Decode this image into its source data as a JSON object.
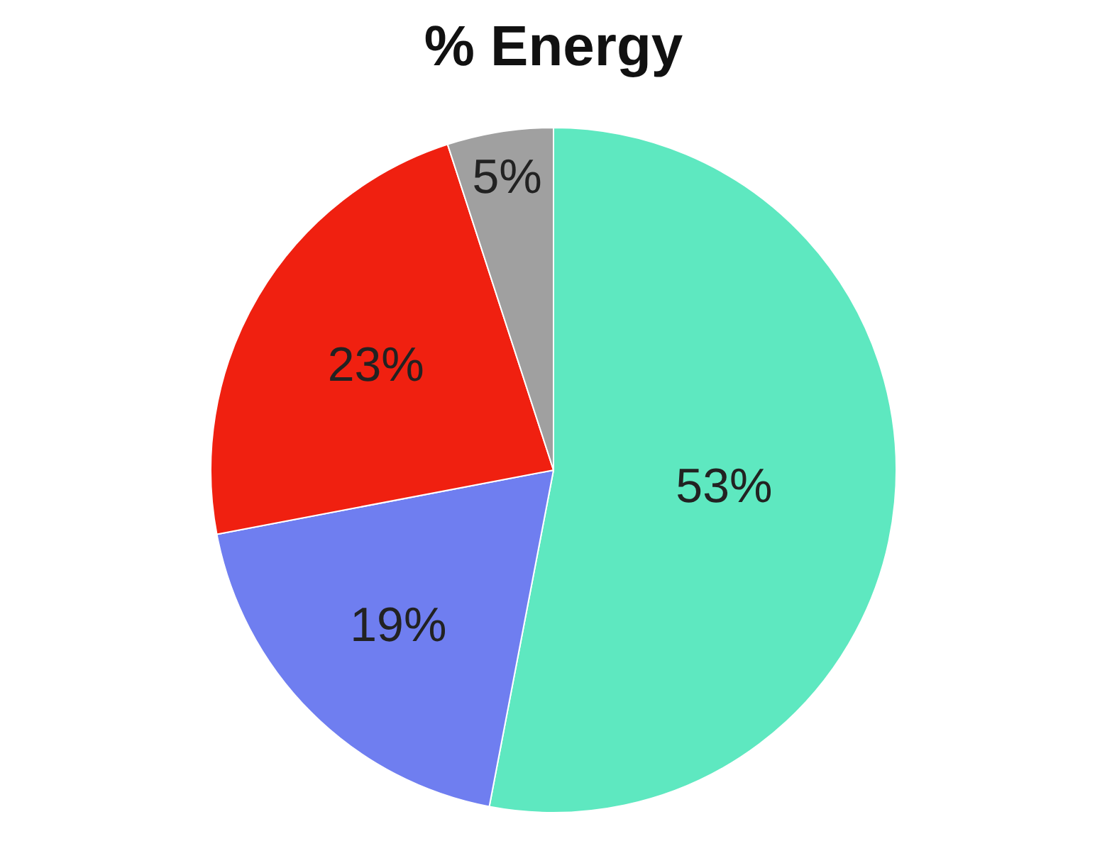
{
  "chart_data": {
    "type": "pie",
    "title": "% Energy",
    "categories": [
      null,
      null,
      null,
      null
    ],
    "values": [
      53,
      19,
      23,
      5
    ],
    "colors": [
      "#5ee8c0",
      "#6f7ef0",
      "#f02010",
      "#a0a0a0"
    ],
    "value_labels": [
      "53%",
      "19%",
      "23%",
      "5%"
    ]
  }
}
